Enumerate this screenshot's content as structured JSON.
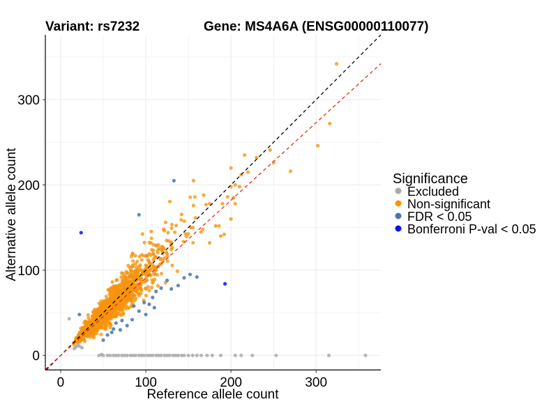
{
  "chart_data": {
    "type": "scatter",
    "title_left": "Variant: rs7232",
    "title_right": "Gene: MS4A6A (ENSG00000110077)",
    "xlabel": "Reference allele count",
    "ylabel": "Alternative allele count",
    "xlim": [
      -18,
      376
    ],
    "ylim": [
      -17,
      376
    ],
    "xticks": [
      0,
      100,
      200,
      300
    ],
    "yticks": [
      0,
      100,
      200,
      300
    ],
    "grid": true,
    "reference_lines": [
      {
        "name": "identity",
        "slope": 1.0,
        "intercept": 0,
        "color": "#000000",
        "style": "dashed"
      },
      {
        "name": "fit",
        "slope": 0.91,
        "intercept": 0,
        "color": "#e8271c",
        "style": "dashed"
      }
    ],
    "legend": {
      "title": "Significance",
      "position": "right",
      "entries": [
        {
          "label": "Excluded",
          "color": "#aaaaaa"
        },
        {
          "label": "Non-significant",
          "color": "#f5940f"
        },
        {
          "label": "FDR < 0.05",
          "color": "#4477aa"
        },
        {
          "label": "Bonferroni P-val < 0.05",
          "color": "#1010ee"
        }
      ]
    },
    "series": [
      {
        "name": "Excluded",
        "color": "#aaaaaa",
        "points": [
          [
            10,
            43
          ],
          [
            16,
            8
          ],
          [
            18,
            10
          ],
          [
            20,
            12
          ],
          [
            22,
            11
          ],
          [
            25,
            9
          ],
          [
            45,
            0
          ],
          [
            48,
            1
          ],
          [
            50,
            0
          ],
          [
            55,
            0
          ],
          [
            58,
            0
          ],
          [
            62,
            0
          ],
          [
            65,
            0
          ],
          [
            68,
            0
          ],
          [
            72,
            0
          ],
          [
            75,
            0
          ],
          [
            78,
            0
          ],
          [
            82,
            0
          ],
          [
            85,
            0
          ],
          [
            88,
            0
          ],
          [
            92,
            0
          ],
          [
            95,
            0
          ],
          [
            98,
            0
          ],
          [
            102,
            0
          ],
          [
            105,
            0
          ],
          [
            108,
            0
          ],
          [
            112,
            0
          ],
          [
            115,
            0
          ],
          [
            118,
            0
          ],
          [
            122,
            0
          ],
          [
            125,
            0
          ],
          [
            128,
            0
          ],
          [
            132,
            0
          ],
          [
            135,
            0
          ],
          [
            138,
            0
          ],
          [
            142,
            0
          ],
          [
            145,
            0
          ],
          [
            150,
            0
          ],
          [
            155,
            0
          ],
          [
            160,
            0
          ],
          [
            165,
            0
          ],
          [
            172,
            0
          ],
          [
            178,
            0
          ],
          [
            188,
            0
          ],
          [
            205,
            0
          ],
          [
            212,
            0
          ],
          [
            225,
            0
          ],
          [
            253,
            0
          ],
          [
            315,
            0
          ],
          [
            358,
            0
          ]
        ]
      },
      {
        "name": "Non-significant",
        "color": "#f5940f",
        "generated": {
          "count": 1500,
          "x_range": [
            15,
            200
          ],
          "ratio": 0.98,
          "noise": 0.15,
          "seed": 7232
        },
        "points": [
          [
            324,
            342
          ],
          [
            302,
            246
          ],
          [
            316,
            272
          ],
          [
            270,
            216
          ],
          [
            246,
            241
          ],
          [
            250,
            226
          ],
          [
            216,
            235
          ],
          [
            230,
            232
          ],
          [
            205,
            200
          ],
          [
            210,
            198
          ],
          [
            196,
            186
          ],
          [
            205,
            178
          ],
          [
            203,
            185
          ],
          [
            190,
            178
          ],
          [
            200,
            160
          ],
          [
            186,
            152
          ],
          [
            192,
            142
          ],
          [
            175,
            178
          ],
          [
            182,
            152
          ],
          [
            188,
            140
          ],
          [
            175,
            132
          ],
          [
            156,
            205
          ],
          [
            212,
            212
          ],
          [
            220,
            215
          ],
          [
            168,
            188
          ]
        ]
      },
      {
        "name": "FDR < 0.05",
        "color": "#4477aa",
        "points": [
          [
            133,
            205
          ],
          [
            92,
            165
          ],
          [
            22,
            48
          ],
          [
            50,
            18
          ],
          [
            55,
            24
          ],
          [
            60,
            27
          ],
          [
            62,
            31
          ],
          [
            72,
            41
          ],
          [
            84,
            42
          ],
          [
            92,
            52
          ],
          [
            98,
            62
          ],
          [
            104,
            60
          ],
          [
            108,
            68
          ],
          [
            112,
            75
          ],
          [
            118,
            79
          ],
          [
            130,
            78
          ],
          [
            138,
            82
          ],
          [
            145,
            91
          ],
          [
            152,
            95
          ],
          [
            160,
            92
          ],
          [
            110,
            56
          ],
          [
            78,
            35
          ],
          [
            65,
            38
          ],
          [
            86,
            58
          ],
          [
            100,
            48
          ],
          [
            125,
            88
          ],
          [
            70,
            30
          ]
        ]
      },
      {
        "name": "Bonferroni P-val < 0.05",
        "color": "#1010ee",
        "points": [
          [
            24,
            144
          ],
          [
            193,
            84
          ]
        ]
      }
    ]
  }
}
